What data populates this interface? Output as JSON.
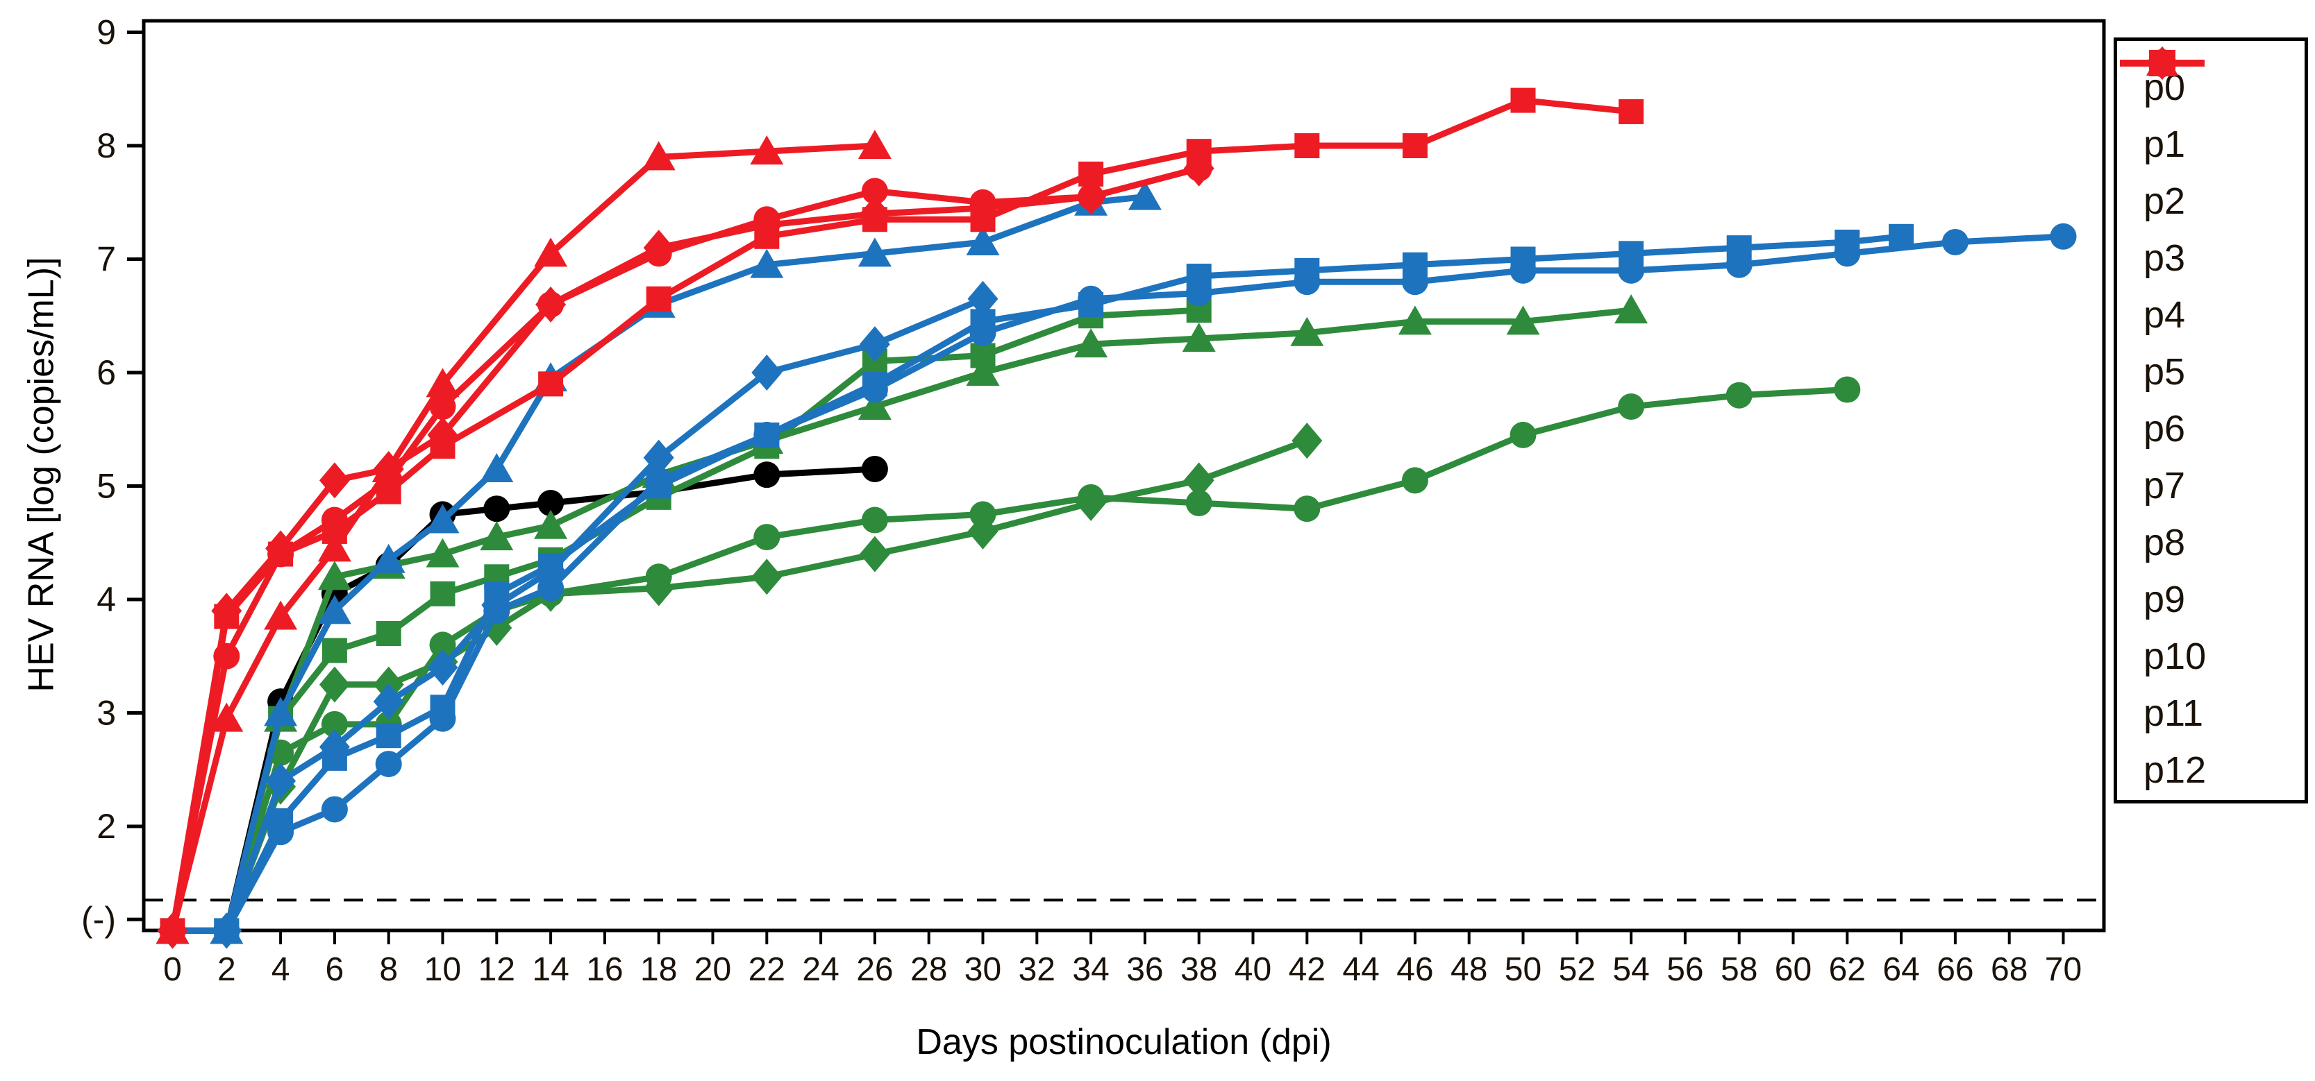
{
  "chart_data": {
    "type": "line",
    "title": "",
    "xlabel": "Days postinoculation (dpi)",
    "ylabel": "HEV RNA [log (copies/mL)]",
    "x_ticks": [
      0,
      2,
      4,
      6,
      8,
      10,
      12,
      14,
      16,
      18,
      20,
      22,
      24,
      26,
      28,
      30,
      32,
      34,
      36,
      38,
      40,
      42,
      44,
      46,
      48,
      50,
      52,
      54,
      56,
      58,
      60,
      62,
      64,
      66,
      68,
      70
    ],
    "y_ticks": [
      {
        "label": "(-)",
        "value": 1.18
      },
      {
        "label": "2",
        "value": 2
      },
      {
        "label": "3",
        "value": 3
      },
      {
        "label": "4",
        "value": 4
      },
      {
        "label": "5",
        "value": 5
      },
      {
        "label": "6",
        "value": 6
      },
      {
        "label": "7",
        "value": 7
      },
      {
        "label": "8",
        "value": 8
      },
      {
        "label": "9",
        "value": 9
      }
    ],
    "xlim": [
      0,
      70
    ],
    "ylim": [
      1.08,
      9
    ],
    "grid": false,
    "legend_position": "right-outside",
    "detection_limit_dashed_line_value": 1.35,
    "below_detection_symbol": "(-)",
    "below_detection_plot_value": 1.08,
    "colors": {
      "passage_0": "#000000",
      "passages_1_4": "#2E8B3C",
      "passages_5_8": "#1E73BE",
      "passages_9_12": "#ED1C24",
      "axis": "#000000"
    },
    "series": [
      {
        "name": "p0",
        "color": "#000000",
        "marker": "circle",
        "points": [
          [
            0,
            1.08
          ],
          [
            2,
            1.08
          ],
          [
            4,
            3.1
          ],
          [
            6,
            4.05
          ],
          [
            8,
            4.3
          ],
          [
            10,
            4.75
          ],
          [
            12,
            4.8
          ],
          [
            14,
            4.85
          ],
          [
            18,
            4.95
          ],
          [
            22,
            5.1
          ],
          [
            26,
            5.15
          ]
        ]
      },
      {
        "name": "p1",
        "color": "#2E8B3C",
        "marker": "circle",
        "points": [
          [
            0,
            1.08
          ],
          [
            2,
            1.08
          ],
          [
            4,
            2.65
          ],
          [
            6,
            2.9
          ],
          [
            8,
            2.9
          ],
          [
            10,
            3.6
          ],
          [
            12,
            3.9
          ],
          [
            14,
            4.05
          ],
          [
            18,
            4.2
          ],
          [
            22,
            4.55
          ],
          [
            26,
            4.7
          ],
          [
            30,
            4.75
          ],
          [
            34,
            4.9
          ],
          [
            38,
            4.85
          ],
          [
            42,
            4.8
          ],
          [
            46,
            5.05
          ],
          [
            50,
            5.45
          ],
          [
            54,
            5.7
          ],
          [
            58,
            5.8
          ],
          [
            62,
            5.85
          ]
        ]
      },
      {
        "name": "p2",
        "color": "#2E8B3C",
        "marker": "square",
        "points": [
          [
            0,
            1.08
          ],
          [
            2,
            1.08
          ],
          [
            4,
            2.95
          ],
          [
            6,
            3.55
          ],
          [
            8,
            3.7
          ],
          [
            10,
            4.05
          ],
          [
            12,
            4.2
          ],
          [
            14,
            4.35
          ],
          [
            18,
            4.9
          ],
          [
            22,
            5.35
          ],
          [
            26,
            6.1
          ],
          [
            30,
            6.15
          ],
          [
            34,
            6.5
          ],
          [
            38,
            6.55
          ]
        ]
      },
      {
        "name": "p3",
        "color": "#2E8B3C",
        "marker": "diamond",
        "points": [
          [
            0,
            1.08
          ],
          [
            2,
            1.08
          ],
          [
            4,
            2.35
          ],
          [
            6,
            3.25
          ],
          [
            8,
            3.25
          ],
          [
            10,
            3.45
          ],
          [
            12,
            3.75
          ],
          [
            14,
            4.05
          ],
          [
            18,
            4.1
          ],
          [
            22,
            4.2
          ],
          [
            26,
            4.4
          ],
          [
            30,
            4.6
          ],
          [
            34,
            4.85
          ],
          [
            38,
            5.05
          ],
          [
            42,
            5.4
          ]
        ]
      },
      {
        "name": "p4",
        "color": "#2E8B3C",
        "marker": "triangle",
        "points": [
          [
            0,
            1.08
          ],
          [
            2,
            1.08
          ],
          [
            4,
            2.95
          ],
          [
            6,
            4.2
          ],
          [
            8,
            4.3
          ],
          [
            10,
            4.4
          ],
          [
            12,
            4.55
          ],
          [
            14,
            4.65
          ],
          [
            18,
            5.1
          ],
          [
            22,
            5.4
          ],
          [
            26,
            5.7
          ],
          [
            30,
            6.0
          ],
          [
            34,
            6.25
          ],
          [
            38,
            6.3
          ],
          [
            42,
            6.35
          ],
          [
            46,
            6.45
          ],
          [
            50,
            6.45
          ],
          [
            54,
            6.55
          ]
        ]
      },
      {
        "name": "p5",
        "color": "#1E73BE",
        "marker": "circle",
        "points": [
          [
            0,
            1.08
          ],
          [
            2,
            1.08
          ],
          [
            4,
            1.95
          ],
          [
            6,
            2.15
          ],
          [
            8,
            2.55
          ],
          [
            10,
            2.95
          ],
          [
            12,
            3.9
          ],
          [
            14,
            4.1
          ],
          [
            18,
            5.05
          ],
          [
            22,
            5.45
          ],
          [
            26,
            5.85
          ],
          [
            30,
            6.35
          ],
          [
            34,
            6.65
          ],
          [
            38,
            6.7
          ],
          [
            42,
            6.8
          ],
          [
            46,
            6.8
          ],
          [
            50,
            6.9
          ],
          [
            54,
            6.9
          ],
          [
            58,
            6.95
          ],
          [
            62,
            7.05
          ],
          [
            66,
            7.15
          ],
          [
            70,
            7.2
          ]
        ]
      },
      {
        "name": "p6",
        "color": "#1E73BE",
        "marker": "square",
        "points": [
          [
            0,
            1.08
          ],
          [
            2,
            1.08
          ],
          [
            4,
            2.05
          ],
          [
            6,
            2.6
          ],
          [
            8,
            2.8
          ],
          [
            10,
            3.05
          ],
          [
            12,
            4.05
          ],
          [
            14,
            4.3
          ],
          [
            18,
            5.0
          ],
          [
            22,
            5.45
          ],
          [
            26,
            5.9
          ],
          [
            30,
            6.45
          ],
          [
            34,
            6.6
          ],
          [
            38,
            6.85
          ],
          [
            42,
            6.9
          ],
          [
            46,
            6.95
          ],
          [
            50,
            7.0
          ],
          [
            54,
            7.05
          ],
          [
            58,
            7.1
          ],
          [
            62,
            7.15
          ],
          [
            64,
            7.2
          ]
        ]
      },
      {
        "name": "p7",
        "color": "#1E73BE",
        "marker": "diamond",
        "points": [
          [
            0,
            1.08
          ],
          [
            2,
            1.08
          ],
          [
            4,
            2.4
          ],
          [
            6,
            2.7
          ],
          [
            8,
            3.1
          ],
          [
            10,
            3.4
          ],
          [
            12,
            3.95
          ],
          [
            14,
            4.25
          ],
          [
            18,
            5.25
          ],
          [
            22,
            6.0
          ],
          [
            26,
            6.25
          ],
          [
            30,
            6.65
          ]
        ]
      },
      {
        "name": "p8",
        "color": "#1E73BE",
        "marker": "triangle",
        "points": [
          [
            0,
            1.08
          ],
          [
            2,
            1.08
          ],
          [
            4,
            3.0
          ],
          [
            6,
            3.9
          ],
          [
            8,
            4.35
          ],
          [
            10,
            4.7
          ],
          [
            12,
            5.15
          ],
          [
            14,
            5.95
          ],
          [
            18,
            6.6
          ],
          [
            22,
            6.95
          ],
          [
            26,
            7.05
          ],
          [
            30,
            7.15
          ],
          [
            34,
            7.5
          ],
          [
            36,
            7.55
          ]
        ]
      },
      {
        "name": "p9",
        "color": "#ED1C24",
        "marker": "circle",
        "points": [
          [
            0,
            1.08
          ],
          [
            2,
            3.5
          ],
          [
            4,
            4.4
          ],
          [
            6,
            4.7
          ],
          [
            8,
            5.05
          ],
          [
            10,
            5.7
          ],
          [
            14,
            6.6
          ],
          [
            18,
            7.05
          ],
          [
            22,
            7.35
          ],
          [
            26,
            7.6
          ],
          [
            30,
            7.5
          ],
          [
            34,
            7.55
          ],
          [
            38,
            7.8
          ]
        ]
      },
      {
        "name": "p10",
        "color": "#ED1C24",
        "marker": "square",
        "points": [
          [
            0,
            1.08
          ],
          [
            2,
            3.85
          ],
          [
            4,
            4.4
          ],
          [
            6,
            4.6
          ],
          [
            8,
            4.95
          ],
          [
            10,
            5.35
          ],
          [
            14,
            5.9
          ],
          [
            18,
            6.65
          ],
          [
            22,
            7.2
          ],
          [
            26,
            7.35
          ],
          [
            30,
            7.35
          ],
          [
            34,
            7.75
          ],
          [
            38,
            7.95
          ],
          [
            42,
            8.0
          ],
          [
            46,
            8.0
          ],
          [
            50,
            8.4
          ],
          [
            54,
            8.3
          ]
        ]
      },
      {
        "name": "p11",
        "color": "#ED1C24",
        "marker": "diamond",
        "points": [
          [
            0,
            1.08
          ],
          [
            2,
            3.9
          ],
          [
            4,
            4.45
          ],
          [
            6,
            5.05
          ],
          [
            8,
            5.15
          ],
          [
            10,
            5.45
          ],
          [
            14,
            6.6
          ],
          [
            18,
            7.1
          ],
          [
            22,
            7.3
          ],
          [
            26,
            7.4
          ],
          [
            30,
            7.45
          ],
          [
            34,
            7.55
          ],
          [
            38,
            7.8
          ]
        ]
      },
      {
        "name": "p12",
        "color": "#ED1C24",
        "marker": "triangle",
        "points": [
          [
            0,
            1.08
          ],
          [
            2,
            2.95
          ],
          [
            4,
            3.85
          ],
          [
            6,
            4.45
          ],
          [
            8,
            5.15
          ],
          [
            10,
            5.9
          ],
          [
            14,
            7.05
          ],
          [
            18,
            7.9
          ],
          [
            22,
            7.95
          ],
          [
            26,
            8.0
          ]
        ]
      }
    ]
  }
}
